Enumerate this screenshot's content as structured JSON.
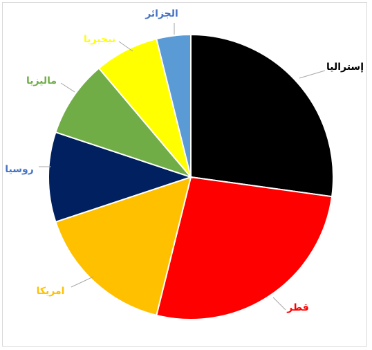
{
  "chart_data": {
    "type": "pie",
    "title": "",
    "slices": [
      {
        "label": "إستراليا",
        "value": 28.0,
        "color": "#000000",
        "label_color": "#000000"
      },
      {
        "label": "قطر",
        "value": 27.5,
        "color": "#ff0000",
        "label_color": "#ff0000"
      },
      {
        "label": "امريكا",
        "value": 16.5,
        "color": "#ffc000",
        "label_color": "#ffc000"
      },
      {
        "label": "روسيا",
        "value": 10.5,
        "color": "#002060",
        "label_color": "#4472c4"
      },
      {
        "label": "ماليزيا",
        "value": 9.0,
        "color": "#70ad47",
        "label_color": "#70ad47"
      },
      {
        "label": "نيجيريا",
        "value": 7.5,
        "color": "#ffff00",
        "label_color": "#ffff00"
      },
      {
        "label": "الجزائر",
        "value": 4.0,
        "color": "#5b9bd5",
        "label_color": "#4472c4"
      }
    ],
    "legend": "none",
    "data_labels": "outside-with-leader-lines"
  }
}
